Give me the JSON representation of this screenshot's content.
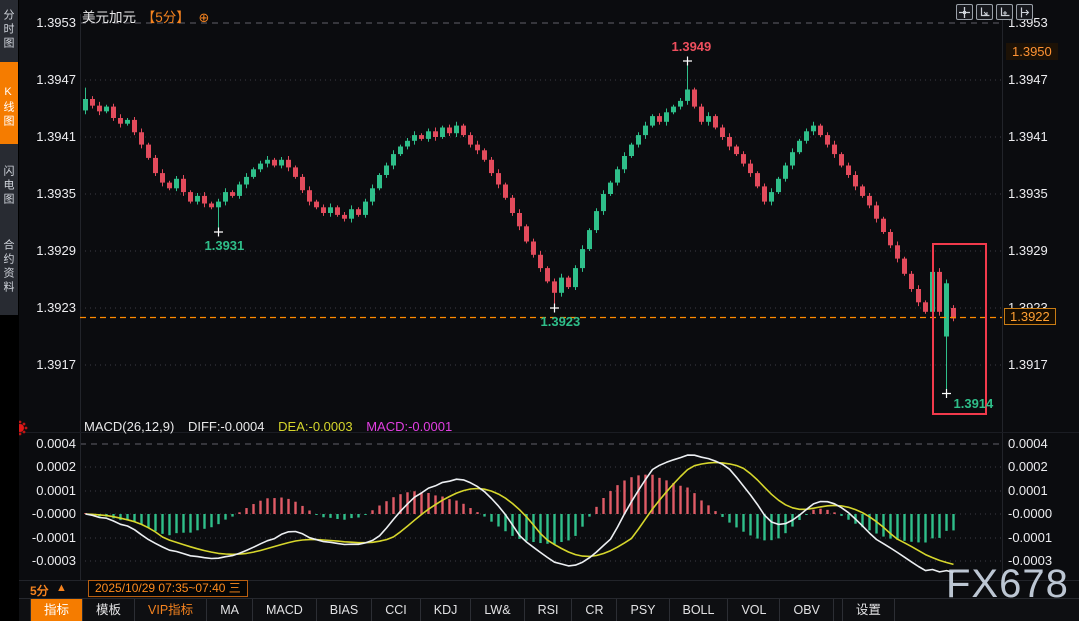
{
  "window": {
    "watermark": "FX678"
  },
  "sidebar": {
    "tabs": [
      {
        "label": "分时图",
        "active": false
      },
      {
        "label": "K线图",
        "active": true
      },
      {
        "label": "闪电图",
        "active": false
      },
      {
        "label": "合约资料",
        "active": false
      }
    ]
  },
  "header": {
    "symbol": "美元加元",
    "interval_tag": "【5分】",
    "plus_icon": "⊕"
  },
  "top_tools": {
    "icons": [
      "crosshair-move-icon",
      "axis-scale-left-icon",
      "axis-scale-right-icon",
      "axis-shift-icon"
    ]
  },
  "main_chart": {
    "y_ticks": [
      "1.3953",
      "1.3947",
      "1.3941",
      "1.3935",
      "1.3929",
      "1.3923",
      "1.3917"
    ],
    "ref_price": "1.3950",
    "current_price": "1.3922"
  },
  "macd_panel": {
    "header": {
      "formula": "MACD(26,12,9)",
      "diff": "DIFF:-0.0004",
      "dea": "DEA:-0.0003",
      "macd": "MACD:-0.0001"
    },
    "y_ticks": [
      "0.0004",
      "0.0002",
      "0.0001",
      "-0.0000",
      "-0.0001",
      "-0.0003"
    ]
  },
  "status_bar": {
    "interval": "5分",
    "arrow": "▲",
    "range": "2025/10/29 07:35~07:40 三"
  },
  "toolbar": {
    "items": [
      {
        "label": "指标",
        "style": "active"
      },
      {
        "label": "模板",
        "style": ""
      },
      {
        "label": "VIP指标",
        "style": "vip"
      },
      {
        "label": "MA",
        "style": ""
      },
      {
        "label": "MACD",
        "style": ""
      },
      {
        "label": "BIAS",
        "style": ""
      },
      {
        "label": "CCI",
        "style": ""
      },
      {
        "label": "KDJ",
        "style": ""
      },
      {
        "label": "LW&",
        "style": ""
      },
      {
        "label": "RSI",
        "style": ""
      },
      {
        "label": "CR",
        "style": ""
      },
      {
        "label": "PSY",
        "style": ""
      },
      {
        "label": "BOLL",
        "style": ""
      },
      {
        "label": "VOL",
        "style": ""
      },
      {
        "label": "OBV",
        "style": ""
      },
      {
        "label": "设置",
        "style": "gap"
      }
    ]
  },
  "colors": {
    "up": "#2fbf8a",
    "down": "#e24b5c",
    "accent": "#f5831f",
    "diff_line": "#eceff2",
    "dea_line": "#d6d62c",
    "macd_text": "#e13ee1",
    "grid": "#4a4a52",
    "dashed_line": "#6a6a72",
    "highlight_box": "#f23a4c",
    "current_line": "#ff8a00",
    "annotation_high": "#ef4f5e",
    "annotation_low": "#2fbf8a"
  },
  "chart_data": {
    "type": "candlestick+macd",
    "symbol": "美元加元",
    "interval": "5分",
    "price_ticks": [
      1.3953,
      1.3947,
      1.3941,
      1.3935,
      1.3929,
      1.3923,
      1.3917
    ],
    "current_price": 1.3922,
    "ref_price": 1.395,
    "closes": [
      1.3945,
      1.39443,
      1.39437,
      1.39442,
      1.3943,
      1.39424,
      1.39428,
      1.39415,
      1.39402,
      1.39388,
      1.39372,
      1.39362,
      1.39356,
      1.39366,
      1.39352,
      1.39342,
      1.39348,
      1.3934,
      1.39336,
      1.39342,
      1.39352,
      1.39348,
      1.3936,
      1.39368,
      1.39376,
      1.39382,
      1.39386,
      1.3938,
      1.39386,
      1.39378,
      1.39368,
      1.39354,
      1.39342,
      1.39336,
      1.3933,
      1.39336,
      1.39328,
      1.39324,
      1.39334,
      1.39328,
      1.39342,
      1.39356,
      1.3937,
      1.3938,
      1.39392,
      1.394,
      1.39406,
      1.39412,
      1.39408,
      1.39416,
      1.3941,
      1.3942,
      1.39414,
      1.39422,
      1.39412,
      1.39402,
      1.39396,
      1.39386,
      1.39372,
      1.3936,
      1.39346,
      1.3933,
      1.39316,
      1.393,
      1.39286,
      1.39272,
      1.39258,
      1.39246,
      1.39262,
      1.39252,
      1.39272,
      1.39292,
      1.39312,
      1.39332,
      1.3935,
      1.39362,
      1.39376,
      1.3939,
      1.39402,
      1.39412,
      1.39422,
      1.39432,
      1.39426,
      1.39436,
      1.39442,
      1.39448,
      1.3946,
      1.39442,
      1.39426,
      1.39432,
      1.3942,
      1.3941,
      1.394,
      1.39392,
      1.39382,
      1.39372,
      1.39358,
      1.39342,
      1.39352,
      1.39366,
      1.3938,
      1.39394,
      1.39406,
      1.39416,
      1.39422,
      1.39412,
      1.39402,
      1.39392,
      1.3938,
      1.3937,
      1.39358,
      1.39348,
      1.39338,
      1.39324,
      1.3931,
      1.39296,
      1.39282,
      1.39266,
      1.3925,
      1.39236,
      1.39226,
      1.39268,
      1.39226,
      1.39256,
      1.3922
    ],
    "candle_overrides": {
      "0": {
        "o": 1.39438,
        "h": 1.39462,
        "l": 1.39434
      },
      "19": {
        "l": 1.3931
      },
      "67": {
        "l": 1.3923
      },
      "86": {
        "h": 1.3949
      },
      "121": {
        "h": 1.39286
      },
      "123": {
        "o": 1.392,
        "c": 1.39256,
        "h": 1.3926,
        "l": 1.3914
      },
      "124": {
        "o": 1.3923,
        "c": 1.39219,
        "h": 1.39233,
        "l": 1.39216
      }
    },
    "annotations": [
      {
        "index": 86,
        "value": 1.3949,
        "label": "1.3949",
        "side": "above",
        "color": "#ef4f5e"
      },
      {
        "index": 19,
        "value": 1.3931,
        "label": "1.3931",
        "side": "below",
        "color": "#2fbf8a"
      },
      {
        "index": 67,
        "value": 1.3923,
        "label": "1.3923",
        "side": "below",
        "color": "#2fbf8a"
      },
      {
        "index": 123,
        "value": 1.3914,
        "label": "1.3914",
        "side": "right",
        "color": "#2fbf8a"
      }
    ],
    "highlight_box": {
      "x": 933,
      "y": 244,
      "w": 53,
      "h": 170
    },
    "macd": {
      "params": [
        26,
        12,
        9
      ],
      "ticks": [
        0.0004,
        0.0002,
        0.0001,
        0,
        -0.0001,
        -0.0003
      ],
      "computed_from_closes": true
    }
  }
}
